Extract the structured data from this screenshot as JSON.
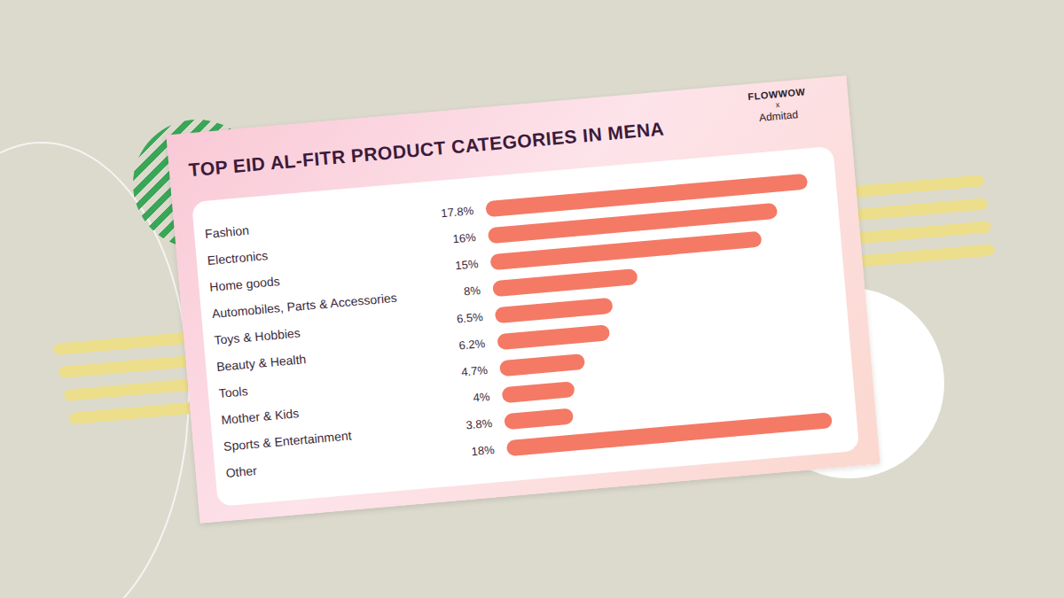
{
  "chart_data": {
    "type": "bar",
    "title": "TOP EID AL-FITR PRODUCT CATEGORIES IN MENA",
    "annotations": [
      "FLOWWOW",
      "x",
      "Admitad"
    ],
    "categories": [
      "Fashion",
      "Electronics",
      "Home goods",
      "Automobiles, Parts & Accessories",
      "Toys & Hobbies",
      "Beauty & Health",
      "Tools",
      "Mother & Kids",
      "Sports & Entertainment",
      "Other"
    ],
    "values": [
      17.8,
      16,
      15,
      8,
      6.5,
      6.2,
      4.7,
      4,
      3.8,
      18
    ],
    "value_labels": [
      "17.8%",
      "16%",
      "15%",
      "8%",
      "6.5%",
      "6.2%",
      "4.7%",
      "4%",
      "3.8%",
      "18%"
    ],
    "color": "#f47a66",
    "orientation": "horizontal",
    "data_labels": true,
    "tick_labels": "y"
  }
}
